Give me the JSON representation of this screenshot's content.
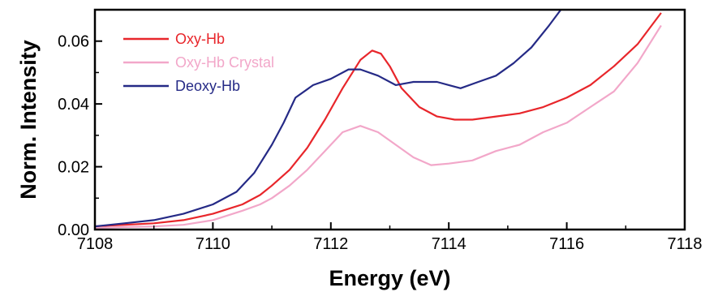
{
  "chart_data": {
    "type": "line",
    "xlabel": "Energy (eV)",
    "ylabel": "Norm. Intensity",
    "xlim": [
      7108,
      7118
    ],
    "ylim": [
      0.0,
      0.07
    ],
    "x_ticks": [
      "7108",
      "7110",
      "7112",
      "7114",
      "7116",
      "7118"
    ],
    "y_ticks": [
      "0.00",
      "0.02",
      "0.04",
      "0.06"
    ],
    "grid": false,
    "legend_position": "top-left",
    "series": [
      {
        "name": "Oxy-Hb",
        "color": "#e8262b",
        "x": [
          7108.0,
          7108.5,
          7109.0,
          7109.5,
          7110.0,
          7110.5,
          7110.8,
          7111.0,
          7111.3,
          7111.6,
          7111.9,
          7112.2,
          7112.5,
          7112.7,
          7112.85,
          7113.0,
          7113.2,
          7113.5,
          7113.8,
          7114.1,
          7114.4,
          7114.8,
          7115.2,
          7115.6,
          7116.0,
          7116.4,
          7116.8,
          7117.2,
          7117.6
        ],
        "y": [
          0.001,
          0.0015,
          0.002,
          0.003,
          0.005,
          0.008,
          0.011,
          0.014,
          0.019,
          0.026,
          0.035,
          0.045,
          0.054,
          0.057,
          0.056,
          0.052,
          0.045,
          0.039,
          0.036,
          0.035,
          0.035,
          0.036,
          0.037,
          0.039,
          0.042,
          0.046,
          0.052,
          0.059,
          0.069
        ]
      },
      {
        "name": "Oxy-Hb Crystal",
        "color": "#f2a7c9",
        "x": [
          7108.0,
          7108.5,
          7109.0,
          7109.5,
          7110.0,
          7110.5,
          7110.8,
          7111.0,
          7111.3,
          7111.6,
          7111.9,
          7112.2,
          7112.5,
          7112.8,
          7113.1,
          7113.4,
          7113.7,
          7114.0,
          7114.4,
          7114.8,
          7115.2,
          7115.6,
          7116.0,
          7116.4,
          7116.8,
          7117.2,
          7117.6
        ],
        "y": [
          0.0005,
          0.0008,
          0.001,
          0.0015,
          0.003,
          0.006,
          0.008,
          0.01,
          0.014,
          0.019,
          0.025,
          0.031,
          0.033,
          0.031,
          0.027,
          0.023,
          0.0205,
          0.021,
          0.022,
          0.025,
          0.027,
          0.031,
          0.034,
          0.039,
          0.044,
          0.053,
          0.065
        ]
      },
      {
        "name": "Deoxy-Hb",
        "color": "#252a86",
        "x": [
          7108.0,
          7108.5,
          7109.0,
          7109.5,
          7110.0,
          7110.4,
          7110.7,
          7111.0,
          7111.2,
          7111.4,
          7111.7,
          7112.0,
          7112.3,
          7112.5,
          7112.8,
          7113.1,
          7113.4,
          7113.8,
          7114.0,
          7114.2,
          7114.5,
          7114.8,
          7115.1,
          7115.4,
          7115.7,
          7115.9
        ],
        "y": [
          0.001,
          0.002,
          0.003,
          0.005,
          0.008,
          0.012,
          0.018,
          0.027,
          0.034,
          0.042,
          0.046,
          0.048,
          0.051,
          0.051,
          0.049,
          0.046,
          0.047,
          0.047,
          0.046,
          0.045,
          0.047,
          0.049,
          0.053,
          0.058,
          0.065,
          0.07
        ]
      }
    ]
  }
}
